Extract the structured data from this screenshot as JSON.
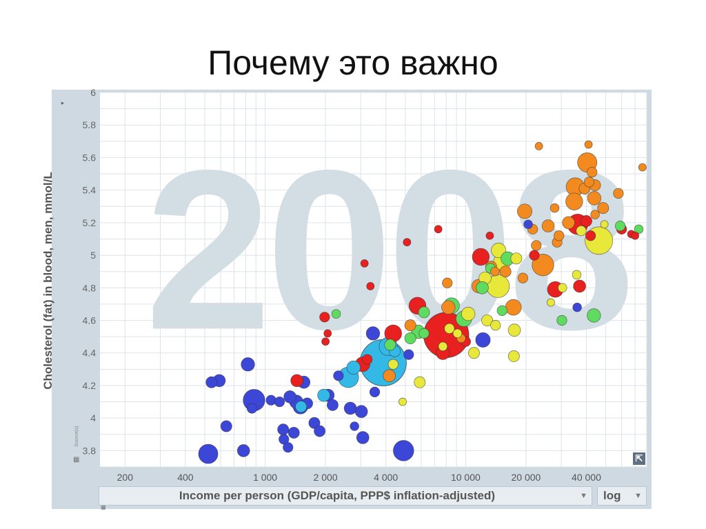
{
  "slide": {
    "title": "Почему это важно"
  },
  "colors": {
    "panel": "#cfd9e2",
    "plot_bg": "#ffffff",
    "grid": "#dde3e8",
    "year_watermark": "#d3dde4",
    "sub_saharan_africa": "#3c47d8",
    "south_asia": "#34b8e5",
    "europe_central_asia": "#f28a20",
    "east_asia_pacific": "#e82020",
    "americas": "#e8e83a",
    "middle_east_north_africa": "#5fdc5f"
  },
  "icons": {
    "left_panel_toggle": "triangle-right-icon",
    "source_grid": "grid-icon",
    "expand": "expand-arrow-icon",
    "dropdown": "chevron-down-icon"
  },
  "controls": {
    "x_indicator": "Income per person (GDP/capita, PPP$ inflation-adjusted)",
    "y_indicator": "Cholesterol (fat) in blood, men, mmol/L",
    "scale": "log",
    "source_label": "Source(s)"
  },
  "chart_data": {
    "type": "scatter",
    "year_label": "2008",
    "xlabel": "Income per person (GDP/capita, PPP$ inflation-adjusted)",
    "ylabel": "Cholesterol (fat) in blood, men, mmol/L",
    "xscale": "log",
    "xlim": [
      150,
      80000
    ],
    "ylim": [
      3.7,
      6.0
    ],
    "x_ticks": [
      200,
      400,
      1000,
      2000,
      4000,
      10000,
      20000,
      40000
    ],
    "x_tick_labels": [
      "200",
      "400",
      "1 000",
      "2 000",
      "4 000",
      "10 000",
      "20 000",
      "40 000"
    ],
    "y_ticks": [
      3.8,
      4,
      4.2,
      4.4,
      4.6,
      4.8,
      5,
      5.2,
      5.4,
      5.6,
      5.8,
      6
    ],
    "y_tick_labels": [
      "3.8",
      "4",
      "4.2",
      "4.4",
      "4.6",
      "4.8",
      "5",
      "5.2",
      "5.4",
      "5.6",
      "5.8",
      "6"
    ],
    "grid": true,
    "points": [
      {
        "x": 520,
        "y": 3.78,
        "size": 1.3,
        "group": "sub_saharan_africa"
      },
      {
        "x": 540,
        "y": 4.22,
        "size": 0.6,
        "group": "sub_saharan_africa"
      },
      {
        "x": 590,
        "y": 4.23,
        "size": 0.7,
        "group": "sub_saharan_africa"
      },
      {
        "x": 640,
        "y": 3.95,
        "size": 0.6,
        "group": "sub_saharan_africa"
      },
      {
        "x": 780,
        "y": 3.8,
        "size": 0.7,
        "group": "sub_saharan_africa"
      },
      {
        "x": 820,
        "y": 4.33,
        "size": 0.8,
        "group": "sub_saharan_africa"
      },
      {
        "x": 880,
        "y": 4.11,
        "size": 1.5,
        "group": "sub_saharan_africa"
      },
      {
        "x": 860,
        "y": 4.06,
        "size": 0.5,
        "group": "sub_saharan_africa"
      },
      {
        "x": 1070,
        "y": 4.11,
        "size": 0.5,
        "group": "sub_saharan_africa"
      },
      {
        "x": 1180,
        "y": 4.1,
        "size": 0.5,
        "group": "sub_saharan_africa"
      },
      {
        "x": 1230,
        "y": 3.93,
        "size": 0.6,
        "group": "sub_saharan_africa"
      },
      {
        "x": 1240,
        "y": 3.87,
        "size": 0.5,
        "group": "sub_saharan_africa"
      },
      {
        "x": 1300,
        "y": 3.82,
        "size": 0.5,
        "group": "sub_saharan_africa"
      },
      {
        "x": 1330,
        "y": 4.13,
        "size": 0.7,
        "group": "sub_saharan_africa"
      },
      {
        "x": 1390,
        "y": 3.91,
        "size": 0.6,
        "group": "sub_saharan_africa"
      },
      {
        "x": 1430,
        "y": 4.1,
        "size": 0.8,
        "group": "sub_saharan_africa"
      },
      {
        "x": 1500,
        "y": 4.07,
        "size": 0.9,
        "group": "sub_saharan_africa"
      },
      {
        "x": 1560,
        "y": 4.22,
        "size": 0.7,
        "group": "sub_saharan_africa"
      },
      {
        "x": 1620,
        "y": 4.09,
        "size": 0.6,
        "group": "sub_saharan_africa"
      },
      {
        "x": 1760,
        "y": 3.97,
        "size": 0.6,
        "group": "sub_saharan_africa"
      },
      {
        "x": 1870,
        "y": 3.92,
        "size": 0.6,
        "group": "sub_saharan_africa"
      },
      {
        "x": 2060,
        "y": 4.14,
        "size": 0.7,
        "group": "sub_saharan_africa"
      },
      {
        "x": 2170,
        "y": 4.08,
        "size": 0.6,
        "group": "sub_saharan_africa"
      },
      {
        "x": 2320,
        "y": 4.26,
        "size": 0.5,
        "group": "sub_saharan_africa"
      },
      {
        "x": 2660,
        "y": 4.06,
        "size": 0.7,
        "group": "sub_saharan_africa"
      },
      {
        "x": 2790,
        "y": 3.95,
        "size": 0.4,
        "group": "sub_saharan_africa"
      },
      {
        "x": 3020,
        "y": 4.04,
        "size": 0.7,
        "group": "sub_saharan_africa"
      },
      {
        "x": 3070,
        "y": 3.88,
        "size": 0.7,
        "group": "sub_saharan_africa"
      },
      {
        "x": 3450,
        "y": 4.52,
        "size": 0.8,
        "group": "sub_saharan_africa"
      },
      {
        "x": 3520,
        "y": 4.16,
        "size": 0.5,
        "group": "sub_saharan_africa"
      },
      {
        "x": 4900,
        "y": 3.8,
        "size": 1.4,
        "group": "sub_saharan_africa"
      },
      {
        "x": 5200,
        "y": 4.39,
        "size": 0.5,
        "group": "sub_saharan_africa"
      },
      {
        "x": 12200,
        "y": 4.48,
        "size": 0.9,
        "group": "sub_saharan_africa"
      },
      {
        "x": 20500,
        "y": 5.19,
        "size": 0.4,
        "group": "sub_saharan_africa"
      },
      {
        "x": 36000,
        "y": 4.68,
        "size": 0.4,
        "group": "sub_saharan_africa"
      },
      {
        "x": 3880,
        "y": 4.34,
        "size": 3.6,
        "group": "south_asia"
      },
      {
        "x": 2600,
        "y": 4.25,
        "size": 1.4,
        "group": "south_asia"
      },
      {
        "x": 2760,
        "y": 4.31,
        "size": 0.8,
        "group": "south_asia"
      },
      {
        "x": 1960,
        "y": 4.14,
        "size": 0.7,
        "group": "south_asia"
      },
      {
        "x": 1510,
        "y": 4.07,
        "size": 0.6,
        "group": "south_asia"
      },
      {
        "x": 4110,
        "y": 4.44,
        "size": 1.2,
        "group": "south_asia"
      },
      {
        "x": 4430,
        "y": 4.41,
        "size": 0.6,
        "group": "south_asia"
      },
      {
        "x": 8000,
        "y": 4.51,
        "size": 3.5,
        "group": "east_asia_pacific"
      },
      {
        "x": 4350,
        "y": 4.52,
        "size": 1.1,
        "group": "east_asia_pacific"
      },
      {
        "x": 5750,
        "y": 4.69,
        "size": 1.1,
        "group": "east_asia_pacific"
      },
      {
        "x": 7700,
        "y": 4.4,
        "size": 0.8,
        "group": "east_asia_pacific"
      },
      {
        "x": 3060,
        "y": 4.33,
        "size": 0.9,
        "group": "east_asia_pacific"
      },
      {
        "x": 3230,
        "y": 4.36,
        "size": 0.5,
        "group": "east_asia_pacific"
      },
      {
        "x": 1440,
        "y": 4.23,
        "size": 0.7,
        "group": "east_asia_pacific"
      },
      {
        "x": 1980,
        "y": 4.62,
        "size": 0.5,
        "group": "east_asia_pacific"
      },
      {
        "x": 2050,
        "y": 4.52,
        "size": 0.3,
        "group": "east_asia_pacific"
      },
      {
        "x": 2000,
        "y": 4.47,
        "size": 0.3,
        "group": "east_asia_pacific"
      },
      {
        "x": 3130,
        "y": 4.95,
        "size": 0.3,
        "group": "east_asia_pacific"
      },
      {
        "x": 3350,
        "y": 4.81,
        "size": 0.3,
        "group": "east_asia_pacific"
      },
      {
        "x": 5100,
        "y": 5.08,
        "size": 0.3,
        "group": "east_asia_pacific"
      },
      {
        "x": 7300,
        "y": 5.16,
        "size": 0.3,
        "group": "east_asia_pacific"
      },
      {
        "x": 10000,
        "y": 4.47,
        "size": 0.5,
        "group": "east_asia_pacific"
      },
      {
        "x": 11900,
        "y": 4.99,
        "size": 1.1,
        "group": "east_asia_pacific"
      },
      {
        "x": 13200,
        "y": 5.12,
        "size": 0.3,
        "group": "east_asia_pacific"
      },
      {
        "x": 22000,
        "y": 5.0,
        "size": 0.5,
        "group": "east_asia_pacific"
      },
      {
        "x": 28000,
        "y": 4.79,
        "size": 1.0,
        "group": "east_asia_pacific"
      },
      {
        "x": 36200,
        "y": 5.19,
        "size": 1.4,
        "group": "east_asia_pacific"
      },
      {
        "x": 37000,
        "y": 4.81,
        "size": 0.7,
        "group": "east_asia_pacific"
      },
      {
        "x": 40000,
        "y": 5.21,
        "size": 0.6,
        "group": "east_asia_pacific"
      },
      {
        "x": 42000,
        "y": 5.12,
        "size": 0.5,
        "group": "east_asia_pacific"
      },
      {
        "x": 60000,
        "y": 5.16,
        "size": 0.5,
        "group": "east_asia_pacific"
      },
      {
        "x": 67000,
        "y": 5.13,
        "size": 0.3,
        "group": "east_asia_pacific"
      },
      {
        "x": 70000,
        "y": 5.12,
        "size": 0.3,
        "group": "east_asia_pacific"
      },
      {
        "x": 40400,
        "y": 5.57,
        "size": 1.3,
        "group": "europe_central_asia"
      },
      {
        "x": 35200,
        "y": 5.42,
        "size": 1.2,
        "group": "europe_central_asia"
      },
      {
        "x": 34800,
        "y": 5.33,
        "size": 1.1,
        "group": "europe_central_asia"
      },
      {
        "x": 43800,
        "y": 5.35,
        "size": 0.8,
        "group": "europe_central_asia"
      },
      {
        "x": 44200,
        "y": 5.43,
        "size": 0.6,
        "group": "europe_central_asia"
      },
      {
        "x": 39200,
        "y": 5.41,
        "size": 0.6,
        "group": "europe_central_asia"
      },
      {
        "x": 41300,
        "y": 5.45,
        "size": 0.5,
        "group": "europe_central_asia"
      },
      {
        "x": 42700,
        "y": 5.51,
        "size": 0.5,
        "group": "europe_central_asia"
      },
      {
        "x": 48500,
        "y": 5.29,
        "size": 0.6,
        "group": "europe_central_asia"
      },
      {
        "x": 57800,
        "y": 5.38,
        "size": 0.5,
        "group": "europe_central_asia"
      },
      {
        "x": 76200,
        "y": 5.54,
        "size": 0.3,
        "group": "europe_central_asia"
      },
      {
        "x": 41000,
        "y": 5.68,
        "size": 0.3,
        "group": "europe_central_asia"
      },
      {
        "x": 23200,
        "y": 5.67,
        "size": 0.3,
        "group": "europe_central_asia"
      },
      {
        "x": 19700,
        "y": 5.27,
        "size": 0.9,
        "group": "europe_central_asia"
      },
      {
        "x": 24300,
        "y": 4.94,
        "size": 1.5,
        "group": "europe_central_asia"
      },
      {
        "x": 17300,
        "y": 4.68,
        "size": 1.0,
        "group": "europe_central_asia"
      },
      {
        "x": 11600,
        "y": 4.81,
        "size": 0.8,
        "group": "europe_central_asia"
      },
      {
        "x": 8200,
        "y": 4.68,
        "size": 0.8,
        "group": "europe_central_asia"
      },
      {
        "x": 4160,
        "y": 4.26,
        "size": 0.7,
        "group": "europe_central_asia"
      },
      {
        "x": 13400,
        "y": 4.93,
        "size": 0.6,
        "group": "europe_central_asia"
      },
      {
        "x": 15800,
        "y": 4.9,
        "size": 0.6,
        "group": "europe_central_asia"
      },
      {
        "x": 19300,
        "y": 4.86,
        "size": 0.5,
        "group": "europe_central_asia"
      },
      {
        "x": 21600,
        "y": 5.16,
        "size": 0.5,
        "group": "europe_central_asia"
      },
      {
        "x": 22500,
        "y": 5.06,
        "size": 0.5,
        "group": "europe_central_asia"
      },
      {
        "x": 25800,
        "y": 5.18,
        "size": 0.7,
        "group": "europe_central_asia"
      },
      {
        "x": 28600,
        "y": 5.08,
        "size": 0.5,
        "group": "europe_central_asia"
      },
      {
        "x": 29200,
        "y": 5.12,
        "size": 0.5,
        "group": "europe_central_asia"
      },
      {
        "x": 32600,
        "y": 5.2,
        "size": 0.7,
        "group": "europe_central_asia"
      },
      {
        "x": 44200,
        "y": 5.25,
        "size": 0.4,
        "group": "europe_central_asia"
      },
      {
        "x": 27800,
        "y": 5.29,
        "size": 0.4,
        "group": "europe_central_asia"
      },
      {
        "x": 8100,
        "y": 4.83,
        "size": 0.5,
        "group": "europe_central_asia"
      },
      {
        "x": 14000,
        "y": 4.9,
        "size": 0.4,
        "group": "europe_central_asia"
      },
      {
        "x": 5300,
        "y": 4.57,
        "size": 0.6,
        "group": "europe_central_asia"
      },
      {
        "x": 9500,
        "y": 4.49,
        "size": 0.4,
        "group": "europe_central_asia"
      },
      {
        "x": 46200,
        "y": 5.09,
        "size": 2.0,
        "group": "americas"
      },
      {
        "x": 14500,
        "y": 4.81,
        "size": 1.6,
        "group": "americas"
      },
      {
        "x": 15200,
        "y": 4.96,
        "size": 1.1,
        "group": "americas"
      },
      {
        "x": 14600,
        "y": 5.03,
        "size": 0.9,
        "group": "americas"
      },
      {
        "x": 10300,
        "y": 4.64,
        "size": 0.8,
        "group": "americas"
      },
      {
        "x": 12800,
        "y": 4.6,
        "size": 0.6,
        "group": "americas"
      },
      {
        "x": 14100,
        "y": 4.57,
        "size": 0.5,
        "group": "americas"
      },
      {
        "x": 17500,
        "y": 4.54,
        "size": 0.7,
        "group": "americas"
      },
      {
        "x": 17400,
        "y": 4.38,
        "size": 0.6,
        "group": "americas"
      },
      {
        "x": 17900,
        "y": 4.98,
        "size": 0.6,
        "group": "americas"
      },
      {
        "x": 12500,
        "y": 4.86,
        "size": 0.7,
        "group": "americas"
      },
      {
        "x": 11000,
        "y": 4.4,
        "size": 0.6,
        "group": "americas"
      },
      {
        "x": 5900,
        "y": 4.22,
        "size": 0.6,
        "group": "americas"
      },
      {
        "x": 4350,
        "y": 4.33,
        "size": 0.5,
        "group": "americas"
      },
      {
        "x": 8300,
        "y": 4.55,
        "size": 0.5,
        "group": "americas"
      },
      {
        "x": 9100,
        "y": 4.52,
        "size": 0.4,
        "group": "americas"
      },
      {
        "x": 4850,
        "y": 4.1,
        "size": 0.3,
        "group": "americas"
      },
      {
        "x": 7700,
        "y": 4.44,
        "size": 0.4,
        "group": "americas"
      },
      {
        "x": 26600,
        "y": 4.71,
        "size": 0.3,
        "group": "americas"
      },
      {
        "x": 49200,
        "y": 5.19,
        "size": 0.3,
        "group": "americas"
      },
      {
        "x": 35800,
        "y": 4.88,
        "size": 0.4,
        "group": "americas"
      },
      {
        "x": 37700,
        "y": 5.15,
        "size": 0.5,
        "group": "americas"
      },
      {
        "x": 30400,
        "y": 4.8,
        "size": 0.4,
        "group": "americas"
      },
      {
        "x": 6200,
        "y": 4.65,
        "size": 0.6,
        "group": "middle_east_north_africa"
      },
      {
        "x": 8500,
        "y": 4.69,
        "size": 1.0,
        "group": "middle_east_north_africa"
      },
      {
        "x": 9800,
        "y": 4.61,
        "size": 1.0,
        "group": "middle_east_north_africa"
      },
      {
        "x": 5800,
        "y": 4.53,
        "size": 0.8,
        "group": "middle_east_north_africa"
      },
      {
        "x": 5300,
        "y": 4.49,
        "size": 0.6,
        "group": "middle_east_north_africa"
      },
      {
        "x": 4200,
        "y": 4.45,
        "size": 0.6,
        "group": "middle_east_north_africa"
      },
      {
        "x": 6200,
        "y": 4.52,
        "size": 0.5,
        "group": "middle_east_north_africa"
      },
      {
        "x": 12100,
        "y": 4.8,
        "size": 0.7,
        "group": "middle_east_north_africa"
      },
      {
        "x": 13300,
        "y": 4.92,
        "size": 0.5,
        "group": "middle_east_north_africa"
      },
      {
        "x": 16200,
        "y": 4.98,
        "size": 0.8,
        "group": "middle_east_north_africa"
      },
      {
        "x": 15200,
        "y": 4.66,
        "size": 0.5,
        "group": "middle_east_north_africa"
      },
      {
        "x": 43600,
        "y": 4.63,
        "size": 0.8,
        "group": "middle_east_north_africa"
      },
      {
        "x": 30200,
        "y": 4.6,
        "size": 0.5,
        "group": "middle_east_north_africa"
      },
      {
        "x": 59000,
        "y": 5.18,
        "size": 0.5,
        "group": "middle_east_north_africa"
      },
      {
        "x": 73000,
        "y": 5.16,
        "size": 0.4,
        "group": "middle_east_north_africa"
      },
      {
        "x": 2260,
        "y": 4.64,
        "size": 0.4,
        "group": "middle_east_north_africa"
      }
    ]
  }
}
